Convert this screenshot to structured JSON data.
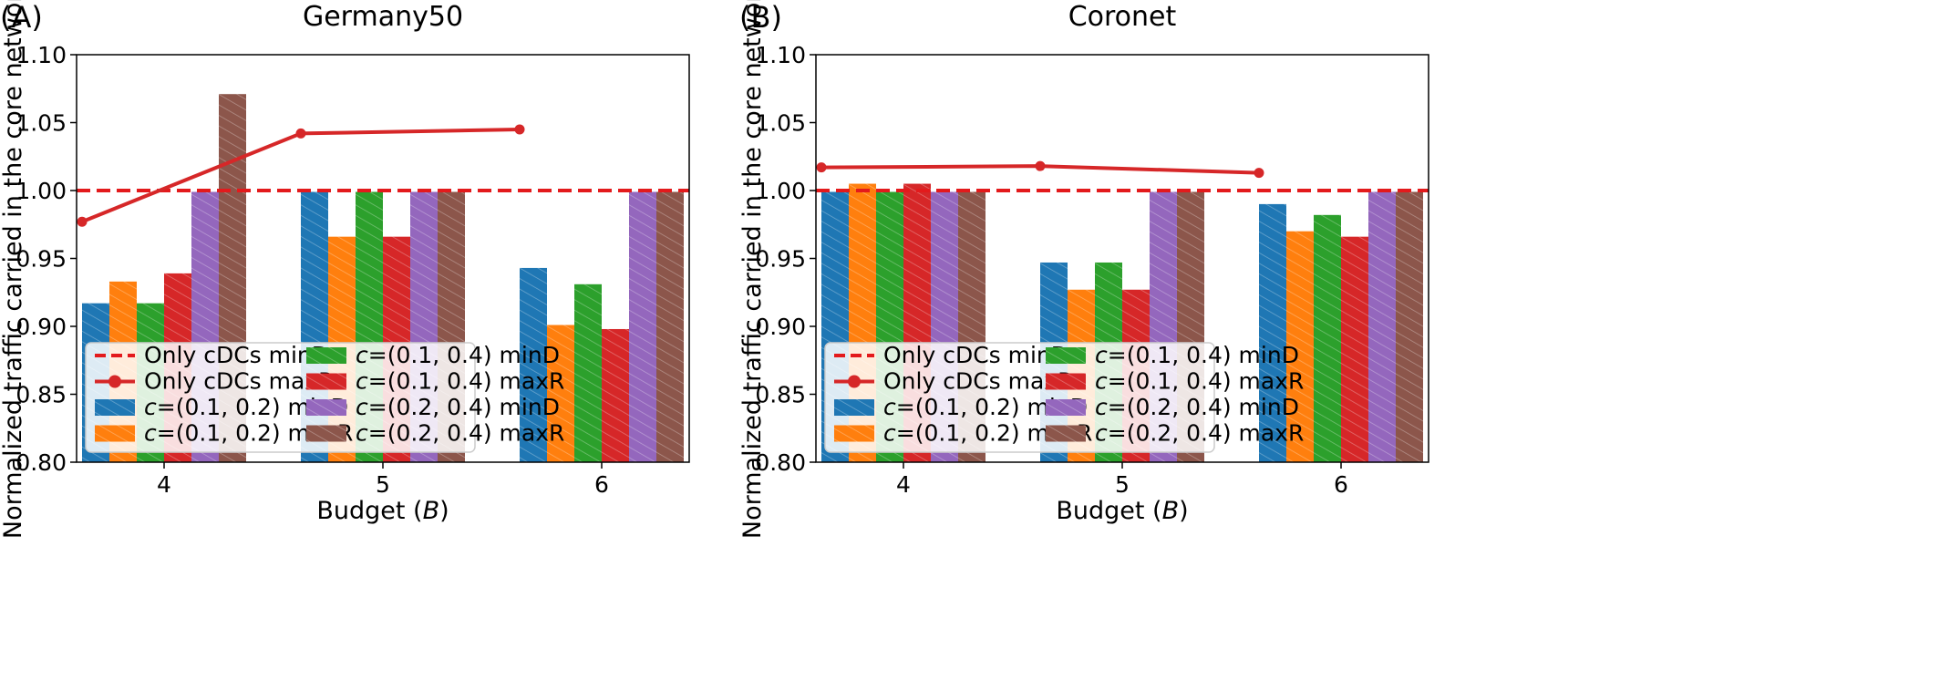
{
  "figure": {
    "colors": {
      "cDCs_minD": "#e31a1c",
      "cDCs_maxR": "#d62728",
      "s1": "#1f77b4",
      "s2": "#ff7f0e",
      "s3": "#2ca02c",
      "s4": "#d62728",
      "s5": "#9467bd",
      "s6": "#8c564b"
    }
  },
  "chart_data": [
    {
      "type": "bar",
      "panel_label": "(A)",
      "title": "Germany50",
      "xlabel": "Budget (B)",
      "xlabel_text": "Budget (",
      "xlabel_var": "B",
      "xlabel_end": ")",
      "ylabel": "Normalized traffic carried in the core network",
      "ylim": [
        0.8,
        1.1
      ],
      "yticks": [
        "0.80",
        "0.85",
        "0.90",
        "0.95",
        "1.00",
        "1.05",
        "1.10"
      ],
      "categories": [
        "4",
        "5",
        "6"
      ],
      "series": [
        {
          "name": "c=(0.1, 0.2) minD",
          "prefix": "c",
          "rest": "=(0.1, 0.2) minD",
          "values": [
            0.917,
            0.999,
            0.943
          ]
        },
        {
          "name": "c=(0.1, 0.2) maxR",
          "prefix": "c",
          "rest": "=(0.1, 0.2) maxR",
          "values": [
            0.933,
            0.966,
            0.901
          ]
        },
        {
          "name": "c=(0.1, 0.4) minD",
          "prefix": "c",
          "rest": "=(0.1, 0.4) minD",
          "values": [
            0.917,
            0.999,
            0.931
          ]
        },
        {
          "name": "c=(0.1, 0.4) maxR",
          "prefix": "c",
          "rest": "=(0.1, 0.4) maxR",
          "values": [
            0.939,
            0.966,
            0.898
          ]
        },
        {
          "name": "c=(0.2, 0.4) minD",
          "prefix": "c",
          "rest": "=(0.2, 0.4) minD",
          "values": [
            0.999,
            0.999,
            0.999
          ]
        },
        {
          "name": "c=(0.2, 0.4) maxR",
          "prefix": "c",
          "rest": "=(0.2, 0.4) maxR",
          "values": [
            1.071,
            0.999,
            0.999
          ]
        }
      ],
      "reference_line": {
        "name": "Only cDCs minD",
        "value": 1.0
      },
      "line_series": {
        "name": "Only cDCs maxR",
        "values": [
          0.977,
          1.042,
          1.045
        ]
      },
      "legend_position": "lower-left"
    },
    {
      "type": "bar",
      "panel_label": "(B)",
      "title": "Coronet",
      "xlabel": "Budget (B)",
      "xlabel_text": "Budget (",
      "xlabel_var": "B",
      "xlabel_end": ")",
      "ylabel": "Normalized traffic carried in the core network",
      "ylim": [
        0.8,
        1.1
      ],
      "yticks": [
        "0.80",
        "0.85",
        "0.90",
        "0.95",
        "1.00",
        "1.05",
        "1.10"
      ],
      "categories": [
        "4",
        "5",
        "6"
      ],
      "series": [
        {
          "name": "c=(0.1, 0.2) minD",
          "prefix": "c",
          "rest": "=(0.1, 0.2) minD",
          "values": [
            0.999,
            0.947,
            0.99
          ]
        },
        {
          "name": "c=(0.1, 0.2) maxR",
          "prefix": "c",
          "rest": "=(0.1, 0.2) maxR",
          "values": [
            1.005,
            0.927,
            0.97
          ]
        },
        {
          "name": "c=(0.1, 0.4) minD",
          "prefix": "c",
          "rest": "=(0.1, 0.4) minD",
          "values": [
            0.999,
            0.947,
            0.982
          ]
        },
        {
          "name": "c=(0.1, 0.4) maxR",
          "prefix": "c",
          "rest": "=(0.1, 0.4) maxR",
          "values": [
            1.005,
            0.927,
            0.966
          ]
        },
        {
          "name": "c=(0.2, 0.4) minD",
          "prefix": "c",
          "rest": "=(0.2, 0.4) minD",
          "values": [
            0.999,
            0.999,
            0.999
          ]
        },
        {
          "name": "c=(0.2, 0.4) maxR",
          "prefix": "c",
          "rest": "=(0.2, 0.4) maxR",
          "values": [
            0.999,
            0.999,
            0.999
          ]
        }
      ],
      "reference_line": {
        "name": "Only cDCs minD",
        "value": 1.0
      },
      "line_series": {
        "name": "Only cDCs maxR",
        "values": [
          1.017,
          1.018,
          1.013
        ]
      },
      "legend_position": "lower-left"
    }
  ]
}
